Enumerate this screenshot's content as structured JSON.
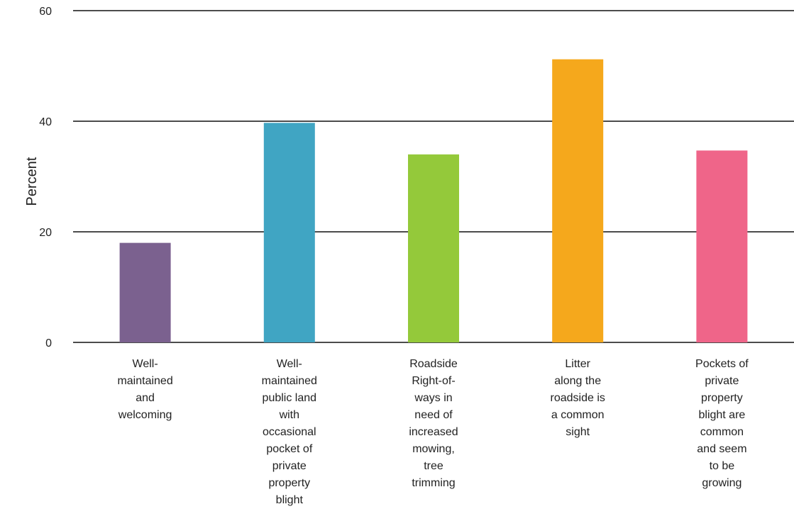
{
  "chart_data": {
    "type": "bar",
    "title": "",
    "xlabel": "",
    "ylabel": "Percent",
    "ylim": [
      0,
      60
    ],
    "yticks": [
      0,
      20,
      40,
      60
    ],
    "grid": true,
    "legend": "none",
    "categories": [
      "Well-maintained and welcoming",
      "Well-maintained public land with occasional pocket of private property blight",
      "Roadside Right-of-ways in need of increased mowing, tree trimming",
      "Litter along the roadside is a common sight",
      "Pockets of private property blight are common and seem to be growing"
    ],
    "category_label_lines": [
      [
        "Well-",
        "maintained",
        "and",
        "welcoming"
      ],
      [
        "Well-",
        "maintained",
        "public land",
        "with",
        "occasional",
        "pocket of",
        "private",
        "property",
        "blight"
      ],
      [
        "Roadside",
        "Right-of-",
        "ways in",
        "need of",
        "increased",
        "mowing,",
        "tree",
        "trimming"
      ],
      [
        "Litter",
        "along the",
        "roadside is",
        "a common",
        "sight"
      ],
      [
        "Pockets of",
        "private",
        "property",
        "blight are",
        "common",
        "and seem",
        "to be",
        "growing"
      ]
    ],
    "values": [
      18,
      39.7,
      34,
      51.2,
      34.7
    ],
    "colors": [
      "#7b618f",
      "#40a5c3",
      "#94c93a",
      "#f5a81c",
      "#ef6589"
    ]
  }
}
